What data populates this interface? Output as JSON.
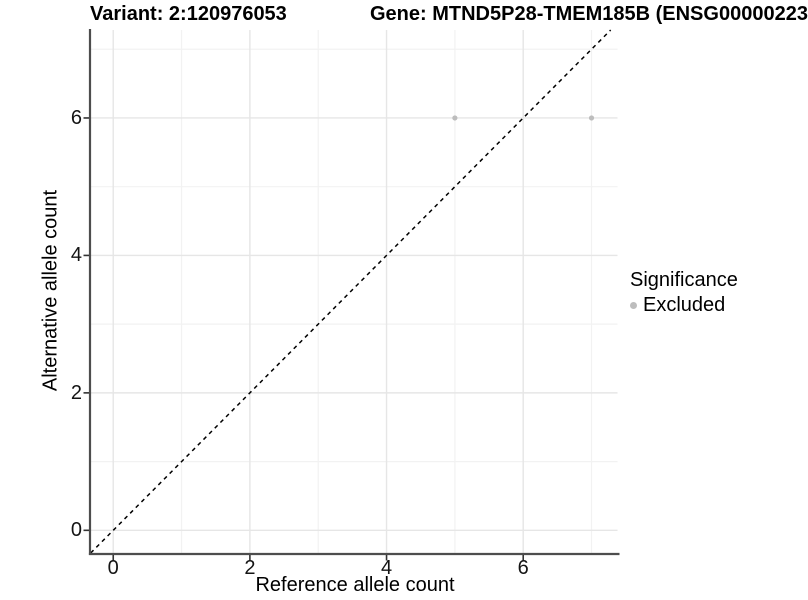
{
  "chart_data": {
    "type": "scatter",
    "titles": {
      "variant": "Variant: 2:120976053",
      "gene": "Gene: MTND5P28-TMEM185B (ENSG00000223"
    },
    "xlabel": "Reference allele count",
    "ylabel": "Alternative allele count",
    "xlim": [
      -0.34,
      7.38
    ],
    "ylim": [
      -0.33,
      7.28
    ],
    "x_ticks": [
      0,
      2,
      4,
      6
    ],
    "y_ticks": [
      0,
      2,
      4,
      6
    ],
    "x_minor_ticks": [
      1,
      3,
      5,
      7
    ],
    "y_minor_ticks": [
      1,
      3,
      5,
      7
    ],
    "grid": "major-and-minor",
    "points": [
      {
        "x": 5,
        "y": 6,
        "significance": "Excluded"
      },
      {
        "x": 7,
        "y": 6,
        "significance": "Excluded"
      }
    ],
    "reference_line": {
      "slope": 1,
      "intercept": 0,
      "style": "dashed"
    },
    "legend": {
      "position": "right",
      "title": "Significance",
      "items": [
        {
          "label": "Excluded",
          "color": "#bdbdbd",
          "marker": "point"
        }
      ]
    },
    "colors": {
      "point": "#bdbdbd",
      "grid_major": "#e6e6e6",
      "grid_minor": "#f2f2f2",
      "axis_line": "#4d4d4d",
      "tick_mark": "#333333",
      "reference_line": "#000000",
      "text": "#000000",
      "background": "#ffffff"
    }
  }
}
